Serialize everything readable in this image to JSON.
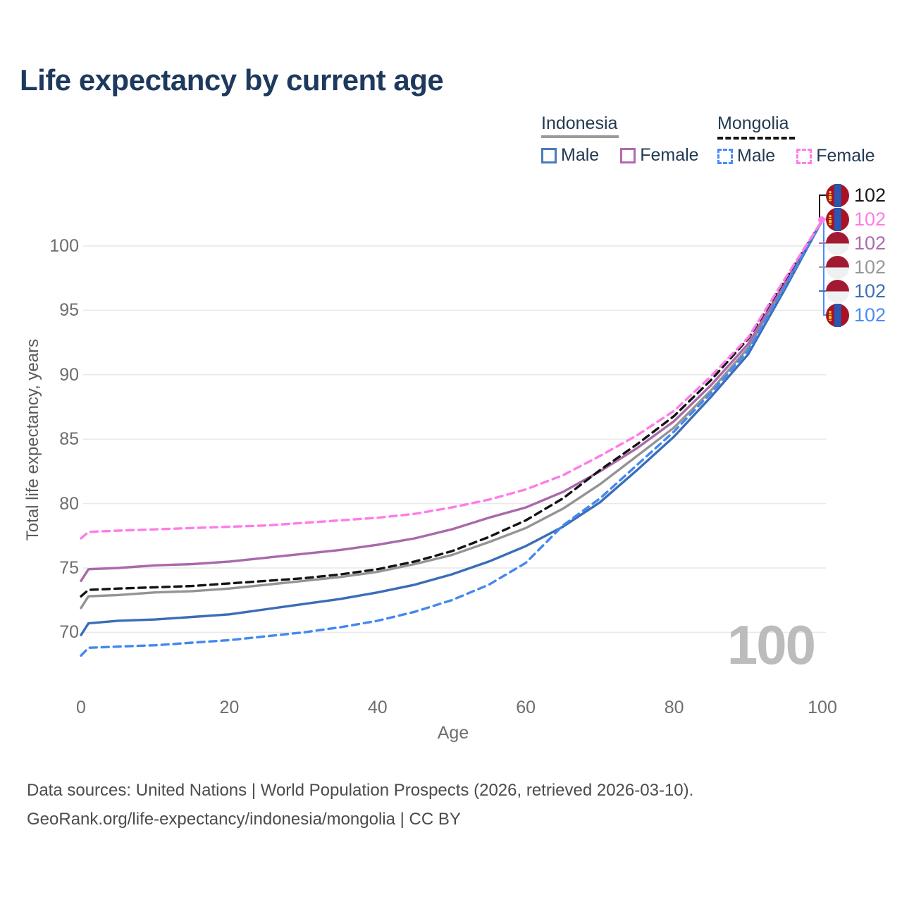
{
  "header": {
    "title": "Life expectancy by current age"
  },
  "watermark": "100",
  "footer": {
    "line1": "Data sources: United Nations | World Population Prospects (2026, retrieved 2026-03-10).",
    "line2": "GeoRank.org/life-expectancy/indonesia/mongolia | CC BY"
  },
  "legend": {
    "groups": [
      {
        "country": "Indonesia",
        "underline_style": "solid",
        "underline_color": "#999999",
        "items": [
          {
            "label": "Male",
            "color": "#3a6db8",
            "dash": false
          },
          {
            "label": "Female",
            "color": "#a96aa9",
            "dash": false
          }
        ]
      },
      {
        "country": "Mongolia",
        "underline_style": "dashed",
        "underline_color": "#141414",
        "items": [
          {
            "label": "Male",
            "color": "#4488f0",
            "dash": true
          },
          {
            "label": "Female",
            "color": "#ff7ce8",
            "dash": true
          }
        ]
      }
    ]
  },
  "chart_data": {
    "type": "line",
    "title": "Life expectancy by current age",
    "xlabel": "Age",
    "ylabel": "Total life expectancy, years",
    "x_ticks": [
      0,
      20,
      40,
      60,
      80,
      100
    ],
    "y_ticks": [
      70,
      75,
      80,
      85,
      90,
      95,
      100
    ],
    "xlim": [
      0,
      100
    ],
    "ylim": [
      65,
      105
    ],
    "grid": true,
    "legend_position": "top-right",
    "ages": [
      0,
      1,
      5,
      10,
      15,
      20,
      25,
      30,
      35,
      40,
      45,
      50,
      55,
      60,
      65,
      70,
      75,
      80,
      85,
      90,
      95,
      100
    ],
    "series": [
      {
        "id": "indonesia-total",
        "name": "Indonesia — Total",
        "country": "indonesia",
        "sex": "Total",
        "color": "#949494",
        "dash": false,
        "values": [
          71.9,
          72.8,
          72.9,
          73.1,
          73.2,
          73.4,
          73.7,
          74.0,
          74.3,
          74.7,
          75.3,
          76.0,
          77.0,
          78.1,
          79.6,
          81.5,
          83.7,
          85.9,
          88.8,
          92.1,
          97.0,
          102
        ]
      },
      {
        "id": "indonesia-female",
        "name": "Indonesia — Female",
        "country": "indonesia",
        "sex": "Female",
        "color": "#a96aa9",
        "dash": false,
        "values": [
          74.0,
          74.9,
          75.0,
          75.2,
          75.3,
          75.5,
          75.8,
          76.1,
          76.4,
          76.8,
          77.3,
          78.0,
          78.9,
          79.7,
          80.9,
          82.5,
          84.3,
          86.4,
          89.2,
          92.4,
          97.2,
          102
        ]
      },
      {
        "id": "indonesia-male",
        "name": "Indonesia — Male",
        "country": "indonesia",
        "sex": "Male",
        "color": "#3a6db8",
        "dash": false,
        "values": [
          69.8,
          70.7,
          70.9,
          71.0,
          71.2,
          71.4,
          71.8,
          72.2,
          72.6,
          73.1,
          73.7,
          74.5,
          75.5,
          76.7,
          78.2,
          80.1,
          82.6,
          85.2,
          88.3,
          91.6,
          96.7,
          102
        ]
      },
      {
        "id": "mongolia-total",
        "name": "Mongolia — Total",
        "country": "mongolia",
        "sex": "Total",
        "color": "#141414",
        "dash": true,
        "values": [
          72.8,
          73.3,
          73.4,
          73.5,
          73.6,
          73.8,
          74.0,
          74.2,
          74.5,
          74.9,
          75.5,
          76.3,
          77.4,
          78.7,
          80.4,
          82.6,
          84.6,
          86.8,
          89.6,
          92.8,
          97.4,
          102
        ]
      },
      {
        "id": "mongolia-male",
        "name": "Mongolia — Male",
        "country": "mongolia",
        "sex": "Male",
        "color": "#4488f0",
        "dash": true,
        "values": [
          68.2,
          68.8,
          68.9,
          69.0,
          69.2,
          69.4,
          69.7,
          70.0,
          70.4,
          70.9,
          71.6,
          72.5,
          73.7,
          75.4,
          78.3,
          80.4,
          83.0,
          85.6,
          88.6,
          91.9,
          96.9,
          102
        ]
      },
      {
        "id": "mongolia-female",
        "name": "Mongolia — Female",
        "country": "mongolia",
        "sex": "Female",
        "color": "#ff7ce8",
        "dash": true,
        "values": [
          77.3,
          77.8,
          77.9,
          78.0,
          78.1,
          78.2,
          78.3,
          78.5,
          78.7,
          78.9,
          79.2,
          79.7,
          80.3,
          81.1,
          82.2,
          83.7,
          85.3,
          87.2,
          89.9,
          92.9,
          97.5,
          102
        ]
      }
    ],
    "end_labels": [
      {
        "series": "mongolia-total",
        "flag": "mongolia",
        "value": "102",
        "color": "#1a1a1a"
      },
      {
        "series": "mongolia-female",
        "flag": "mongolia",
        "value": "102",
        "color": "#ff7ce8"
      },
      {
        "series": "indonesia-female",
        "flag": "indonesia",
        "value": "102",
        "color": "#ab6cab"
      },
      {
        "series": "indonesia-total",
        "flag": "indonesia",
        "value": "102",
        "color": "#989898"
      },
      {
        "series": "indonesia-male",
        "flag": "indonesia",
        "value": "102",
        "color": "#3f6fb7"
      },
      {
        "series": "mongolia-male",
        "flag": "mongolia",
        "value": "102",
        "color": "#4a8cf7"
      }
    ]
  }
}
